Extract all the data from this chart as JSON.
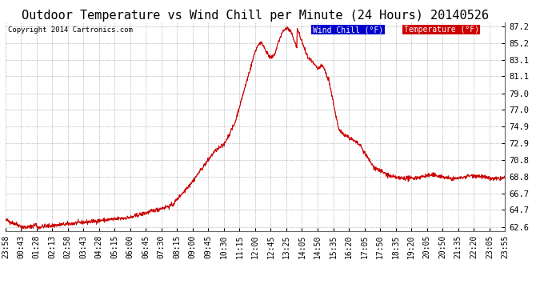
{
  "title": "Outdoor Temperature vs Wind Chill per Minute (24 Hours) 20140526",
  "copyright": "Copyright 2014 Cartronics.com",
  "yticks": [
    62.6,
    64.7,
    66.7,
    68.8,
    70.8,
    72.9,
    74.9,
    77.0,
    79.0,
    81.1,
    83.1,
    85.2,
    87.2
  ],
  "xtick_labels": [
    "23:58",
    "00:43",
    "01:28",
    "02:13",
    "02:58",
    "03:43",
    "04:28",
    "05:15",
    "06:00",
    "06:45",
    "07:30",
    "08:15",
    "09:00",
    "09:45",
    "10:30",
    "11:15",
    "12:00",
    "12:45",
    "13:25",
    "14:05",
    "14:50",
    "15:35",
    "16:20",
    "17:05",
    "17:50",
    "18:35",
    "19:20",
    "20:05",
    "20:50",
    "21:35",
    "22:20",
    "23:05",
    "23:55"
  ],
  "legend_wind_chill_bg": "#0000cc",
  "legend_wind_chill_fg": "#ffffff",
  "legend_temp_bg": "#cc0000",
  "legend_temp_fg": "#ffffff",
  "line_color": "#cc0000",
  "background_color": "#ffffff",
  "grid_color": "#999999",
  "title_fontsize": 11,
  "axis_fontsize": 7.5,
  "ylim_min": 62.6,
  "ylim_max": 87.2
}
